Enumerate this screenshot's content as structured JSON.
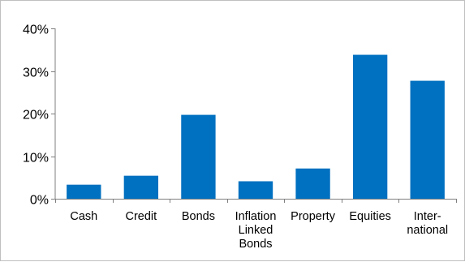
{
  "chart_data": {
    "type": "bar",
    "categories": [
      [
        "Cash"
      ],
      [
        "Credit"
      ],
      [
        "Bonds"
      ],
      [
        "Inflation",
        "Linked",
        "Bonds"
      ],
      [
        "Property"
      ],
      [
        "Equities"
      ],
      [
        "Inter-",
        "national"
      ]
    ],
    "values": [
      3.3,
      5.4,
      19.7,
      4.1,
      7.1,
      33.8,
      27.7
    ],
    "ylim": [
      0,
      40
    ],
    "y_ticks": [
      0,
      10,
      20,
      30,
      40
    ],
    "y_tick_labels": [
      "0%",
      "10%",
      "20%",
      "30%",
      "40%"
    ],
    "title": "",
    "xlabel": "",
    "ylabel": "",
    "grid": false,
    "bar_color": "#0070c0",
    "axis_color": "#7f7f7f"
  }
}
